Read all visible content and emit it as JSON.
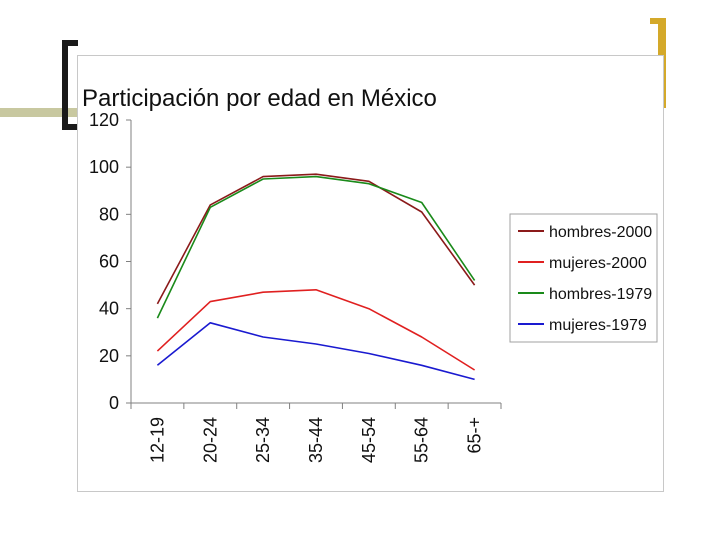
{
  "slide": {
    "title": "Participación por edad en México"
  },
  "chart_data": {
    "type": "line",
    "title": "",
    "xlabel": "",
    "ylabel": "",
    "categories": [
      "12-19",
      "20-24",
      "25-34",
      "35-44",
      "45-54",
      "55-64",
      "65-+"
    ],
    "ylim": [
      0,
      120
    ],
    "yticks": [
      0,
      20,
      40,
      60,
      80,
      100,
      120
    ],
    "grid": false,
    "legend_position": "right",
    "series": [
      {
        "name": "hombres-2000",
        "color": "#8b1a1a",
        "values": [
          42,
          84,
          96,
          97,
          94,
          81,
          50
        ]
      },
      {
        "name": "mujeres-2000",
        "color": "#e02020",
        "values": [
          22,
          43,
          47,
          48,
          40,
          28,
          14
        ]
      },
      {
        "name": "hombres-1979",
        "color": "#1a8a1a",
        "values": [
          36,
          83,
          95,
          96,
          93,
          85,
          52
        ]
      },
      {
        "name": "mujeres-1979",
        "color": "#1a1ad0",
        "values": [
          16,
          34,
          28,
          25,
          21,
          16,
          10
        ]
      }
    ]
  }
}
